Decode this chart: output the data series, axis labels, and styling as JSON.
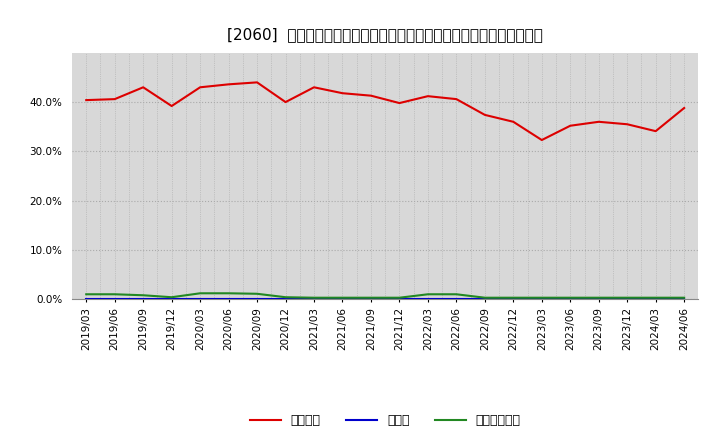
{
  "title": "[2060]  自己資本、のれん、繰延税金資産の総資産に対する比率の推移",
  "x_labels": [
    "2019/03",
    "2019/06",
    "2019/09",
    "2019/12",
    "2020/03",
    "2020/06",
    "2020/09",
    "2020/12",
    "2021/03",
    "2021/06",
    "2021/09",
    "2021/12",
    "2022/03",
    "2022/06",
    "2022/09",
    "2022/12",
    "2023/03",
    "2023/06",
    "2023/09",
    "2023/12",
    "2024/03",
    "2024/06"
  ],
  "equity_ratio": [
    0.404,
    0.406,
    0.43,
    0.392,
    0.43,
    0.436,
    0.44,
    0.4,
    0.43,
    0.418,
    0.413,
    0.398,
    0.412,
    0.406,
    0.374,
    0.36,
    0.323,
    0.352,
    0.36,
    0.355,
    0.341,
    0.388
  ],
  "noren_ratio": [
    0.0002,
    0.0002,
    0.0002,
    0.0002,
    0.0002,
    0.0002,
    0.0002,
    0.0002,
    0.0002,
    0.0002,
    0.0002,
    0.0002,
    0.0002,
    0.0002,
    0.0002,
    0.0002,
    0.0002,
    0.0002,
    0.0002,
    0.0002,
    0.0002,
    0.0002
  ],
  "deferred_tax_ratio": [
    0.01,
    0.01,
    0.008,
    0.004,
    0.012,
    0.012,
    0.011,
    0.004,
    0.003,
    0.003,
    0.003,
    0.003,
    0.01,
    0.01,
    0.003,
    0.003,
    0.003,
    0.003,
    0.003,
    0.003,
    0.003,
    0.003
  ],
  "equity_color": "#dd0000",
  "noren_color": "#0000cc",
  "deferred_tax_color": "#228822",
  "legend_labels": [
    "自己資本",
    "のれん",
    "繰延税金資産"
  ],
  "ylim": [
    0.0,
    0.5
  ],
  "yticks": [
    0.0,
    0.1,
    0.2,
    0.3,
    0.4
  ],
  "background_color": "#ffffff",
  "plot_bg_color": "#d8d8d8",
  "grid_color_h": "#aaaaaa",
  "grid_color_v": "#aaaaaa",
  "title_fontsize": 11,
  "tick_fontsize": 7.5,
  "legend_fontsize": 9
}
